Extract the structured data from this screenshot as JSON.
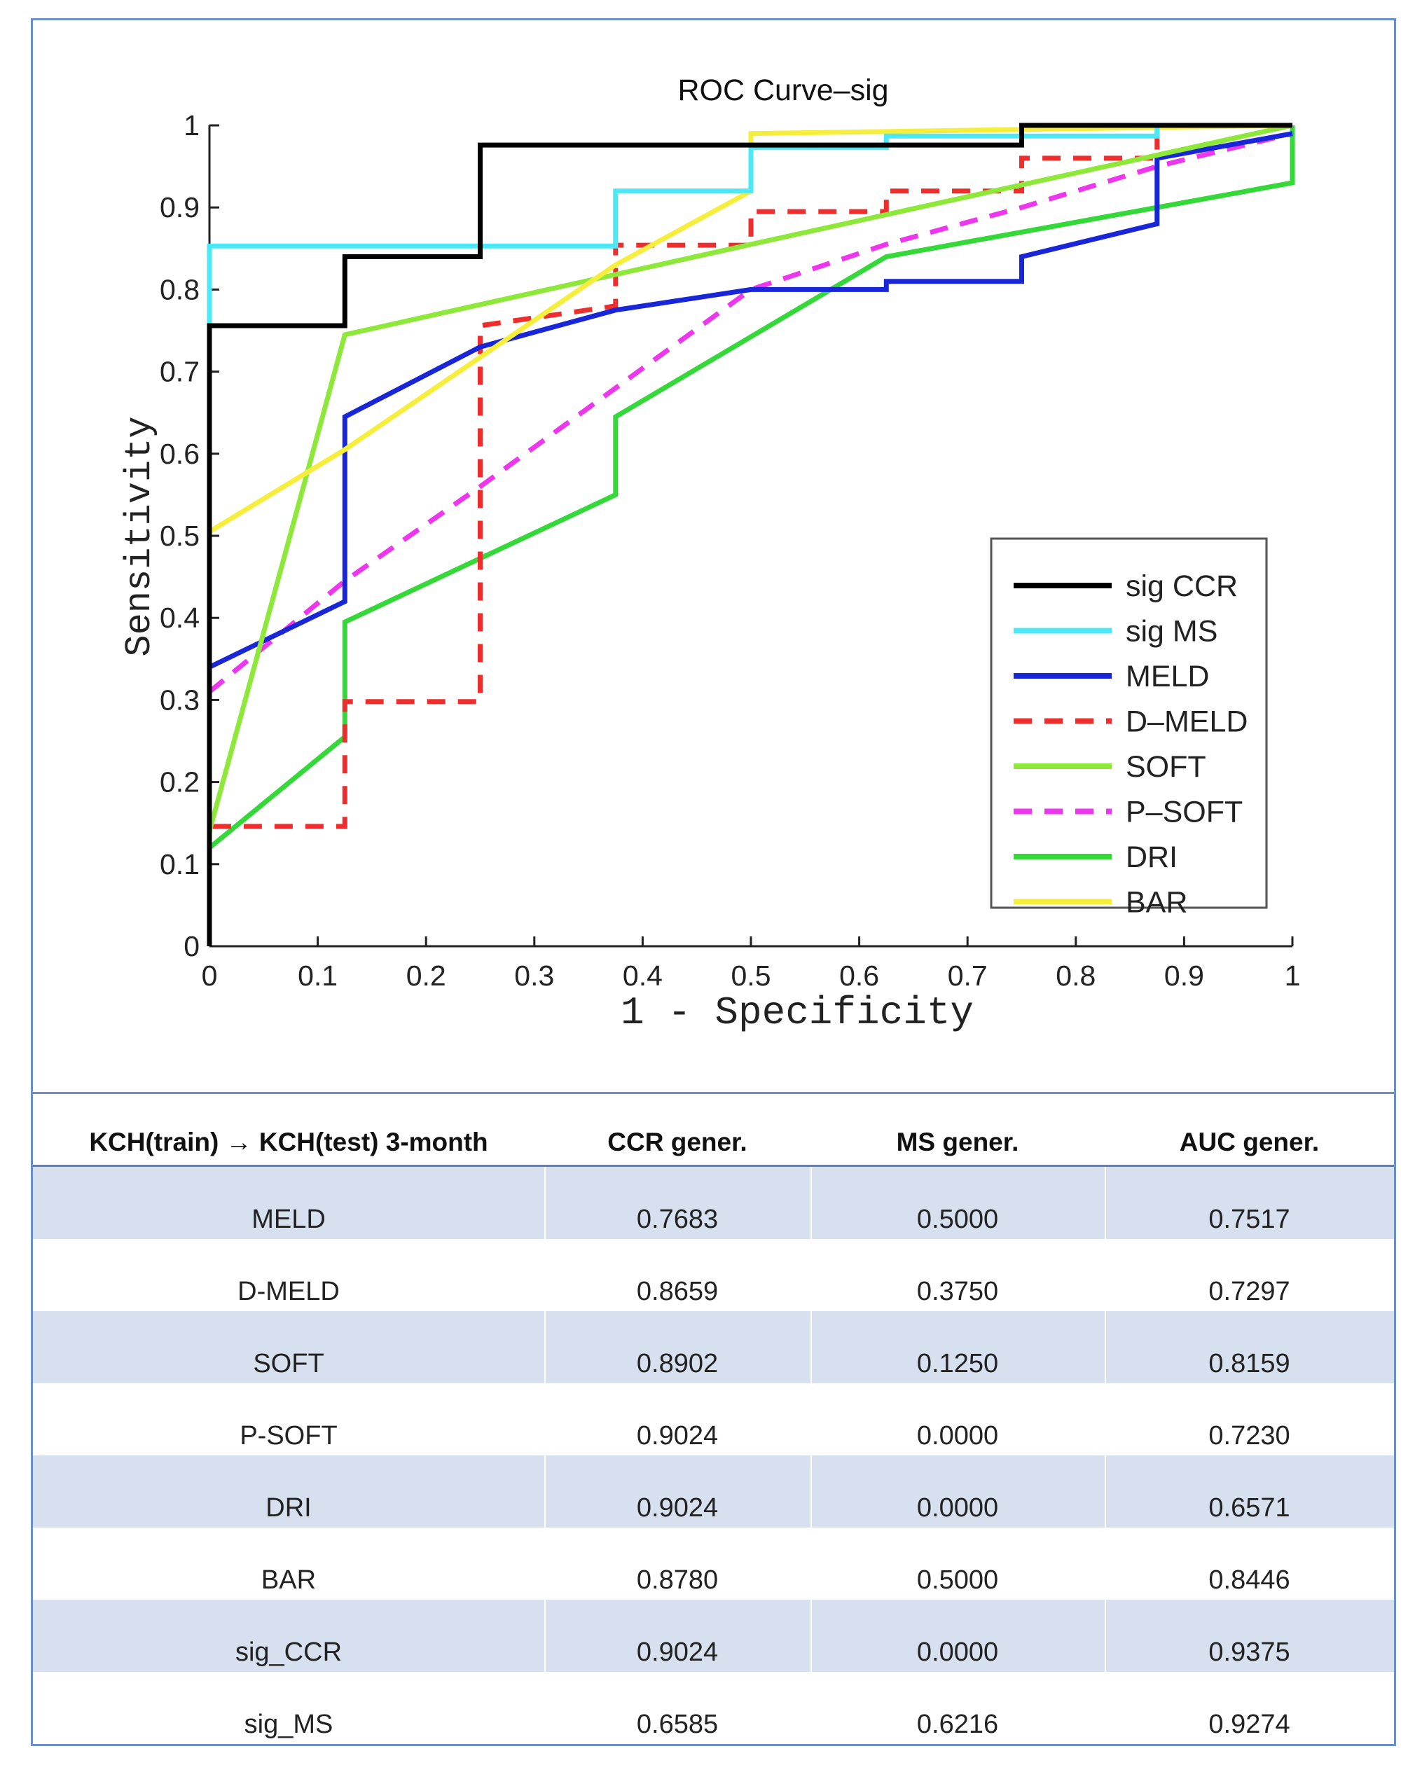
{
  "chart_data": {
    "type": "line",
    "title": "ROC Curve–sig",
    "xlabel": "1 - Specificity",
    "ylabel": "Sensitivity",
    "xlim": [
      0,
      1
    ],
    "ylim": [
      0,
      1
    ],
    "xticks": [
      "0",
      "0.1",
      "0.2",
      "0.3",
      "0.4",
      "0.5",
      "0.6",
      "0.7",
      "0.8",
      "0.9",
      "1"
    ],
    "yticks": [
      "0",
      "0.1",
      "0.2",
      "0.3",
      "0.4",
      "0.5",
      "0.6",
      "0.7",
      "0.8",
      "0.9",
      "1"
    ],
    "legend_position": "lower-right",
    "grid": false,
    "series": [
      {
        "name": "sig CCR",
        "color": "#000000",
        "dash": "solid",
        "x": [
          0,
          0,
          0.125,
          0.125,
          0.25,
          0.25,
          0.5,
          0.75,
          0.75,
          1
        ],
        "y": [
          0,
          0.756,
          0.756,
          0.84,
          0.84,
          0.976,
          0.976,
          0.976,
          1,
          1
        ]
      },
      {
        "name": "sig MS",
        "color": "#4ce8f5",
        "dash": "solid",
        "x": [
          0,
          0,
          0.375,
          0.375,
          0.5,
          0.5,
          0.625,
          0.625,
          0.875,
          0.875,
          1
        ],
        "y": [
          0,
          0.853,
          0.853,
          0.92,
          0.92,
          0.973,
          0.973,
          0.987,
          0.987,
          1,
          1
        ]
      },
      {
        "name": "MELD",
        "color": "#1826d8",
        "dash": "solid",
        "x": [
          0,
          0.125,
          0.125,
          0.25,
          0.375,
          0.5,
          0.625,
          0.625,
          0.75,
          0.75,
          0.875,
          0.875,
          1
        ],
        "y": [
          0.34,
          0.42,
          0.645,
          0.73,
          0.775,
          0.8,
          0.8,
          0.81,
          0.81,
          0.84,
          0.88,
          0.96,
          0.99
        ]
      },
      {
        "name": "D–MELD",
        "color": "#ee2d2d",
        "dash": "dashed",
        "x": [
          0,
          0,
          0.125,
          0.125,
          0.25,
          0.25,
          0.375,
          0.375,
          0.5,
          0.5,
          0.625,
          0.625,
          0.75,
          0.75,
          0.875,
          0.875,
          1
        ],
        "y": [
          0,
          0.146,
          0.146,
          0.298,
          0.298,
          0.756,
          0.78,
          0.854,
          0.854,
          0.895,
          0.895,
          0.92,
          0.92,
          0.96,
          0.96,
          1,
          1
        ]
      },
      {
        "name": "SOFT",
        "color": "#8ee83a",
        "dash": "solid",
        "x": [
          0,
          0.125,
          0.5,
          1
        ],
        "y": [
          0.14,
          0.745,
          0.855,
          1
        ]
      },
      {
        "name": "P–SOFT",
        "color": "#ee36ee",
        "dash": "dashed",
        "x": [
          0,
          0.125,
          0.25,
          0.375,
          0.5,
          0.625,
          0.75,
          0.875,
          1
        ],
        "y": [
          0.31,
          0.445,
          0.56,
          0.68,
          0.8,
          0.855,
          0.9,
          0.95,
          0.99
        ]
      },
      {
        "name": "DRI",
        "color": "#35d839",
        "dash": "solid",
        "x": [
          0,
          0.125,
          0.125,
          0.375,
          0.375,
          0.625,
          0.875,
          1,
          1
        ],
        "y": [
          0.12,
          0.255,
          0.395,
          0.55,
          0.645,
          0.84,
          0.9,
          0.93,
          1
        ]
      },
      {
        "name": "BAR",
        "color": "#f6ee3c",
        "dash": "solid",
        "x": [
          0,
          0,
          0.125,
          0.375,
          0.5,
          0.5,
          1
        ],
        "y": [
          0,
          0.505,
          0.605,
          0.83,
          0.92,
          0.99,
          1
        ]
      }
    ]
  },
  "table": {
    "headers": [
      "KCH(train) → KCH(test) 3-month",
      "CCR gener.",
      "MS gener.",
      "AUC gener."
    ],
    "rows": [
      [
        "MELD",
        "0.7683",
        "0.5000",
        "0.7517"
      ],
      [
        "D-MELD",
        "0.8659",
        "0.3750",
        "0.7297"
      ],
      [
        "SOFT",
        "0.8902",
        "0.1250",
        "0.8159"
      ],
      [
        "P-SOFT",
        "0.9024",
        "0.0000",
        "0.7230"
      ],
      [
        "DRI",
        "0.9024",
        "0.0000",
        "0.6571"
      ],
      [
        "BAR",
        "0.8780",
        "0.5000",
        "0.8446"
      ],
      [
        "sig_CCR",
        "0.9024",
        "0.0000",
        "0.9375"
      ],
      [
        "sig_MS",
        "0.6585",
        "0.6216",
        "0.9274"
      ]
    ]
  }
}
